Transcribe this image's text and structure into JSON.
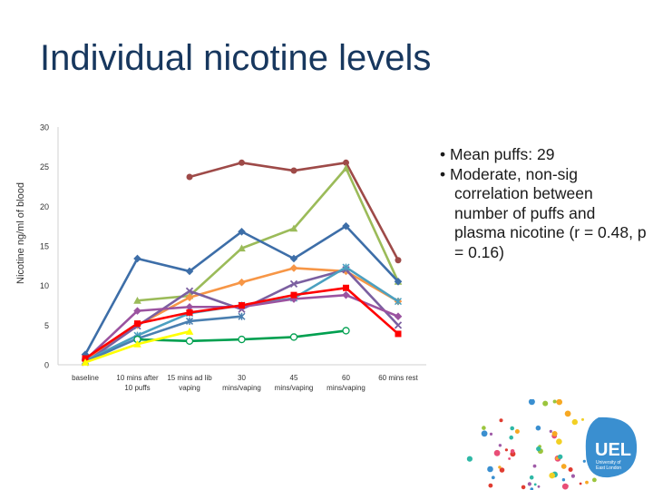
{
  "slide": {
    "title": "Individual nicotine levels",
    "notes": [
      "• Mean puffs: 29",
      "• Moderate, non-sig correlation between number of puffs and plasma nicotine (r = 0.48, p = 0.16)"
    ],
    "logo": {
      "text": "UEL",
      "subtitle": [
        "University of",
        "East London"
      ],
      "color": "#3a8fd0"
    }
  },
  "chart_data": {
    "type": "line",
    "title": "",
    "xlabel": "",
    "ylabel": "Nicotine ng/ml of blood",
    "ylim": [
      0,
      30
    ],
    "yticks": [
      0,
      5,
      10,
      15,
      20,
      25,
      30
    ],
    "grid": false,
    "legend": "none",
    "categories": [
      [
        "baseline"
      ],
      [
        "10 mins after",
        "10 puffs"
      ],
      [
        "15 mins ad lib",
        "vaping"
      ],
      [
        "30",
        "mins/vaping"
      ],
      [
        "45",
        "mins/vaping"
      ],
      [
        "60",
        "mins/vaping"
      ],
      [
        "60 mins rest"
      ]
    ],
    "series": [
      {
        "color": "#9e4a48",
        "marker": "circle",
        "values": [
          null,
          null,
          23.7,
          25.5,
          24.5,
          25.5,
          13.2
        ]
      },
      {
        "color": "#9bbb59",
        "marker": "triangle",
        "values": [
          null,
          8.1,
          8.7,
          14.7,
          17.2,
          24.8,
          10.5
        ]
      },
      {
        "color": "#3d6ea8",
        "marker": "diamond",
        "values": [
          1.3,
          13.4,
          11.8,
          16.8,
          13.4,
          17.5,
          10.5
        ]
      },
      {
        "color": "#f79646",
        "marker": "diamond",
        "values": [
          0.5,
          5.0,
          8.5,
          10.4,
          12.2,
          11.8,
          8.0
        ]
      },
      {
        "color": "#7b5fa0",
        "marker": "cross",
        "values": [
          0.3,
          4.9,
          9.3,
          7.0,
          10.2,
          12.0,
          5.0
        ]
      },
      {
        "color": "#4ba0c0",
        "marker": "star",
        "values": [
          0.5,
          3.7,
          6.5,
          7.5,
          8.4,
          12.3,
          8.0
        ]
      },
      {
        "color": "#9b53a0",
        "marker": "diamond",
        "values": [
          0.6,
          6.8,
          7.3,
          7.3,
          8.3,
          8.8,
          6.1
        ]
      },
      {
        "color": "#4a7fb0",
        "marker": "star",
        "values": [
          0.4,
          3.3,
          5.5,
          6.1,
          null,
          null,
          null
        ]
      },
      {
        "color": "#ff0000",
        "marker": "square",
        "values": [
          0.8,
          5.2,
          6.6,
          7.5,
          8.8,
          9.7,
          3.9
        ]
      },
      {
        "color": "#00a050",
        "marker": "circle-open",
        "values": [
          null,
          3.2,
          3.0,
          3.2,
          3.5,
          4.3,
          null
        ]
      },
      {
        "color": "#ffff00",
        "marker": "triangle",
        "values": [
          0.3,
          2.6,
          4.2,
          null,
          null,
          null,
          null
        ]
      }
    ]
  }
}
